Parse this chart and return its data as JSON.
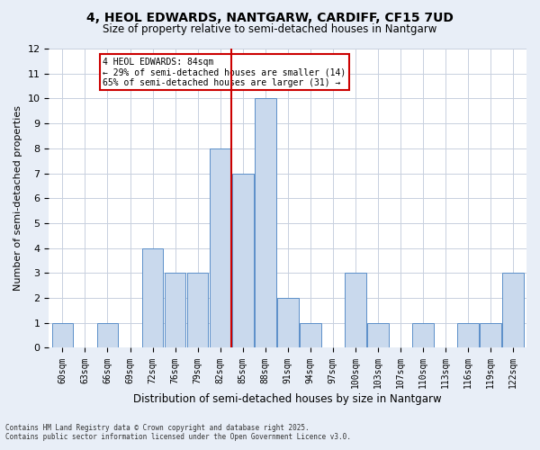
{
  "title": "4, HEOL EDWARDS, NANTGARW, CARDIFF, CF15 7UD",
  "subtitle": "Size of property relative to semi-detached houses in Nantgarw",
  "xlabel": "Distribution of semi-detached houses by size in Nantgarw",
  "ylabel": "Number of semi-detached properties",
  "bins": [
    "60sqm",
    "63sqm",
    "66sqm",
    "69sqm",
    "72sqm",
    "76sqm",
    "79sqm",
    "82sqm",
    "85sqm",
    "88sqm",
    "91sqm",
    "94sqm",
    "97sqm",
    "100sqm",
    "103sqm",
    "107sqm",
    "110sqm",
    "113sqm",
    "116sqm",
    "119sqm",
    "122sqm"
  ],
  "values": [
    1,
    0,
    1,
    0,
    4,
    3,
    3,
    8,
    7,
    10,
    2,
    1,
    0,
    3,
    1,
    0,
    1,
    0,
    1,
    1,
    3
  ],
  "bar_color": "#c9d9ed",
  "bar_edge_color": "#5b8fc9",
  "vline_x_index": 7.5,
  "vline_color": "#cc0000",
  "annotation_title": "4 HEOL EDWARDS: 84sqm",
  "annotation_line1": "← 29% of semi-detached houses are smaller (14)",
  "annotation_line2": "65% of semi-detached houses are larger (31) →",
  "annotation_box_color": "#cc0000",
  "ylim": [
    0,
    12
  ],
  "yticks": [
    0,
    1,
    2,
    3,
    4,
    5,
    6,
    7,
    8,
    9,
    10,
    11,
    12
  ],
  "footnote1": "Contains HM Land Registry data © Crown copyright and database right 2025.",
  "footnote2": "Contains public sector information licensed under the Open Government Licence v3.0.",
  "bg_color": "#e8eef7",
  "plot_bg_color": "#ffffff",
  "grid_color": "#c8d0de"
}
